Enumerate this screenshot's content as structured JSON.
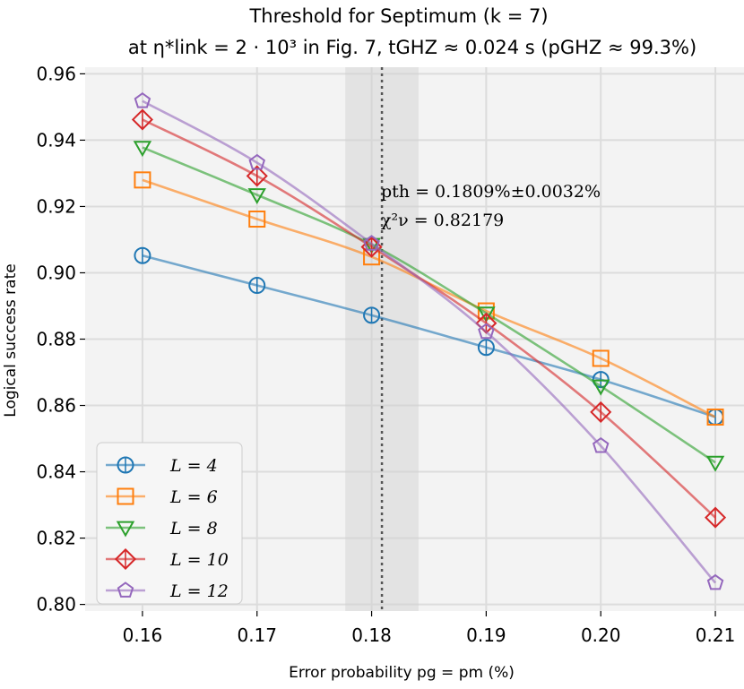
{
  "chart_data": {
    "type": "line",
    "title_line1": "Threshold for Septimum (k = 7)",
    "title_line2": "at η*link = 2 · 10³ in Fig. 7, tGHZ ≈ 0.024 s (pGHZ ≈ 99.3%)",
    "xlabel": "Error probability pg = pm (%)",
    "ylabel": "Logical success rate",
    "xlim": [
      0.155,
      0.2125
    ],
    "ylim": [
      0.798,
      0.962
    ],
    "x_ticks": [
      "0.16",
      "0.17",
      "0.18",
      "0.19",
      "0.20",
      "0.21"
    ],
    "y_ticks": [
      "0.80",
      "0.82",
      "0.84",
      "0.86",
      "0.88",
      "0.90",
      "0.92",
      "0.94",
      "0.96"
    ],
    "x": [
      0.16,
      0.17,
      0.18,
      0.19,
      0.2,
      0.21
    ],
    "threshold": {
      "value": 0.1809,
      "error": 0.0032,
      "label": "pth = 0.1809%±0.0032%",
      "chi_label": "χ²ν = 0.82179"
    },
    "legend_position": "lower-left",
    "grid": true,
    "series": [
      {
        "name": "L = 4",
        "color": "#1f77b4",
        "marker": "circle",
        "values": [
          0.9052,
          0.8962,
          0.8872,
          0.8775,
          0.8678,
          0.8565
        ]
      },
      {
        "name": "L = 6",
        "color": "#ff7f0e",
        "marker": "square",
        "values": [
          0.928,
          0.9162,
          0.9048,
          0.8885,
          0.8742,
          0.8565
        ]
      },
      {
        "name": "L = 8",
        "color": "#2ca02c",
        "marker": "triangle",
        "values": [
          0.9378,
          0.9235,
          0.9085,
          0.8878,
          0.8658,
          0.8428
        ]
      },
      {
        "name": "L = 10",
        "color": "#d62728",
        "marker": "diamond",
        "values": [
          0.9462,
          0.9292,
          0.9078,
          0.8848,
          0.858,
          0.8262
        ]
      },
      {
        "name": "L = 12",
        "color": "#9467bd",
        "marker": "pentagon",
        "values": [
          0.9518,
          0.9332,
          0.9088,
          0.8822,
          0.8478,
          0.8065
        ]
      }
    ]
  }
}
